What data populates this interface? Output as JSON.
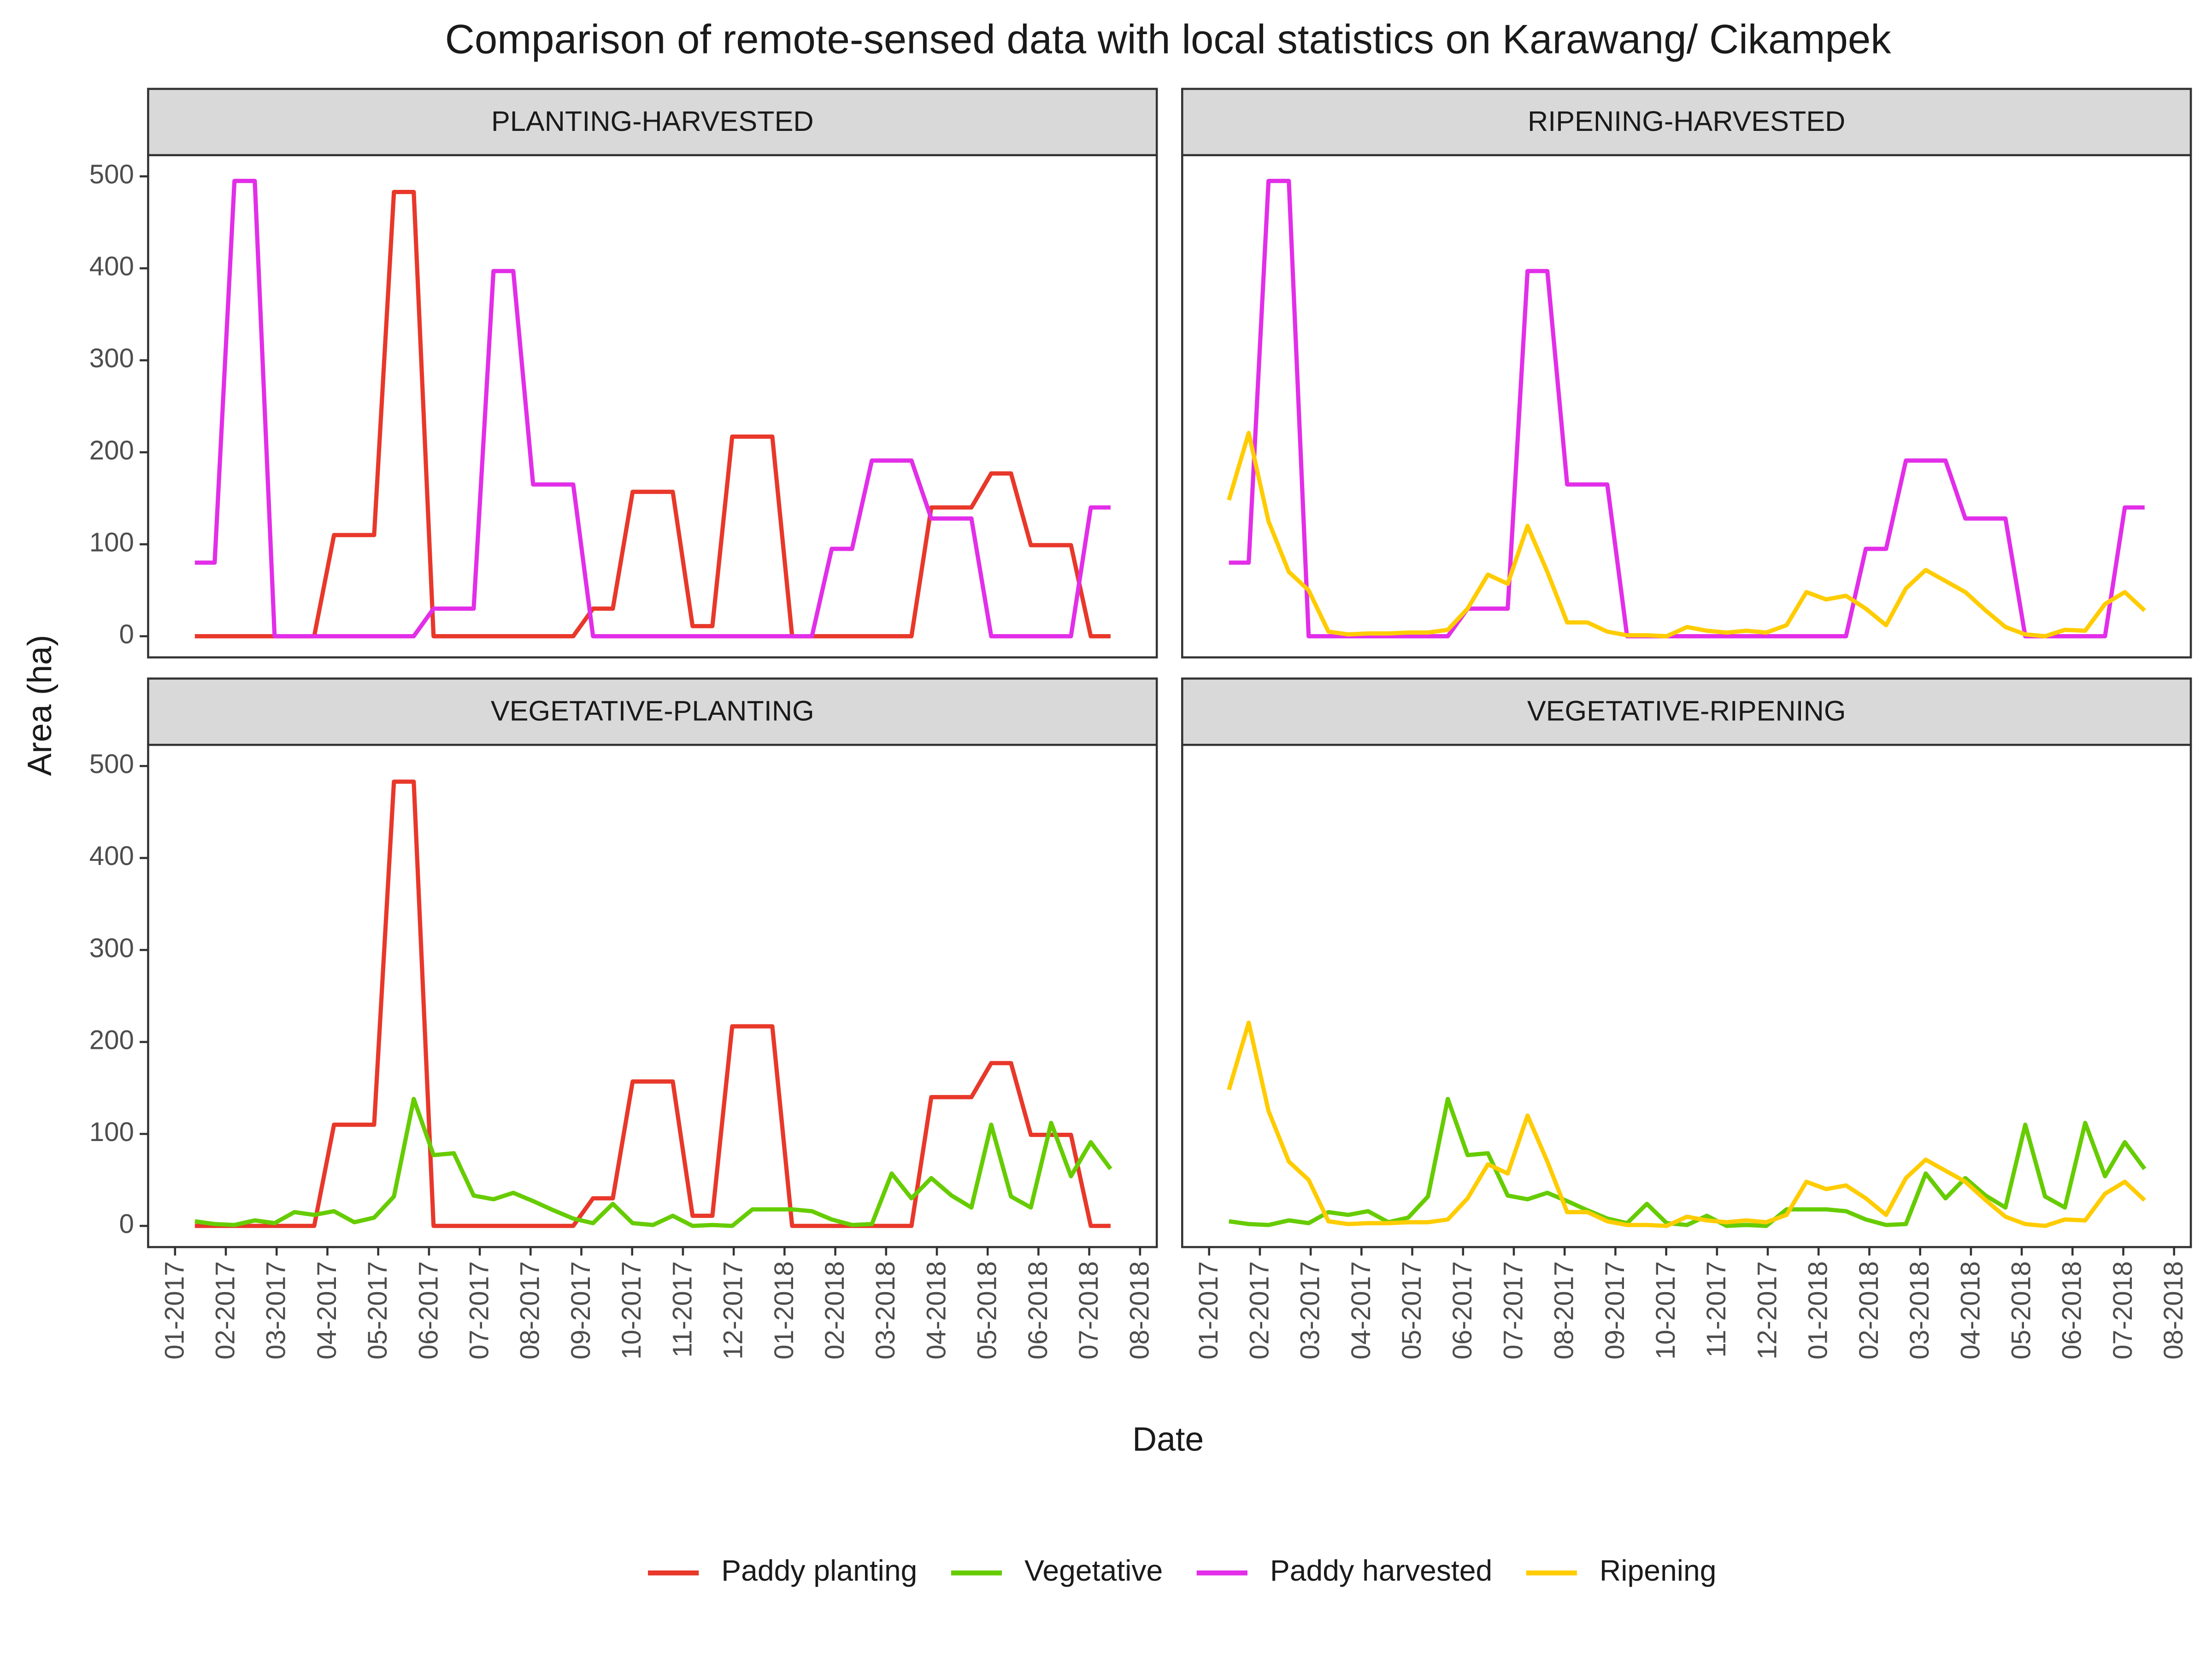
{
  "chart_data": {
    "type": "line",
    "title": "Comparison of remote-sensed data with local statistics on Karawang/ Cikampek",
    "x_label": "Date",
    "y_label": "Area (ha)",
    "legend": "bottom",
    "grid": false,
    "x": [
      0.39,
      0.78,
      1.17,
      1.57,
      1.96,
      2.35,
      2.74,
      3.13,
      3.53,
      3.92,
      4.31,
      4.7,
      5.09,
      5.49,
      5.88,
      6.27,
      6.66,
      7.05,
      7.45,
      7.84,
      8.23,
      8.62,
      9.01,
      9.41,
      9.8,
      10.19,
      10.58,
      10.97,
      11.37,
      11.76,
      12.15,
      12.54,
      12.93,
      13.33,
      13.72,
      14.11,
      14.5,
      14.89,
      15.29,
      15.68,
      16.07,
      16.46,
      16.85,
      17.25,
      17.64,
      18.03,
      18.42
    ],
    "xlim": [
      -0.53,
      19.33
    ],
    "xticks": [
      {
        "value": 0,
        "label": "01-2017"
      },
      {
        "value": 1,
        "label": "02-2017"
      },
      {
        "value": 2,
        "label": "03-2017"
      },
      {
        "value": 3,
        "label": "04-2017"
      },
      {
        "value": 4,
        "label": "05-2017"
      },
      {
        "value": 5,
        "label": "06-2017"
      },
      {
        "value": 6,
        "label": "07-2017"
      },
      {
        "value": 7,
        "label": "08-2017"
      },
      {
        "value": 8,
        "label": "09-2017"
      },
      {
        "value": 9,
        "label": "10-2017"
      },
      {
        "value": 10,
        "label": "11-2017"
      },
      {
        "value": 11,
        "label": "12-2017"
      },
      {
        "value": 12,
        "label": "01-2018"
      },
      {
        "value": 13,
        "label": "02-2018"
      },
      {
        "value": 14,
        "label": "03-2018"
      },
      {
        "value": 15,
        "label": "04-2018"
      },
      {
        "value": 16,
        "label": "05-2018"
      },
      {
        "value": 17,
        "label": "06-2018"
      },
      {
        "value": 18,
        "label": "07-2018"
      },
      {
        "value": 19,
        "label": "08-2018"
      }
    ],
    "ylim": [
      -23,
      523
    ],
    "yticks": [
      0,
      100,
      200,
      300,
      400,
      500
    ],
    "series": [
      {
        "name": "Paddy planting",
        "color": "#e8382a",
        "values": [
          0,
          0,
          0,
          0,
          0,
          0,
          0,
          110,
          110,
          110,
          483,
          483,
          0,
          0,
          0,
          0,
          0,
          0,
          0,
          0,
          30,
          30,
          157,
          157,
          157,
          11,
          11,
          217,
          217,
          217,
          0,
          0,
          0,
          0,
          0,
          0,
          0,
          140,
          140,
          140,
          177,
          177,
          99,
          99,
          99,
          0,
          0
        ]
      },
      {
        "name": "Vegetative",
        "color": "#66cc00",
        "values": [
          5,
          2,
          1,
          6,
          3,
          15,
          12,
          16,
          4,
          9,
          32,
          138,
          77,
          79,
          33,
          29,
          36,
          27,
          17,
          8,
          3,
          24,
          3,
          1,
          11,
          0,
          1,
          0,
          18,
          18,
          18,
          16,
          7,
          1,
          2,
          57,
          30,
          52,
          33,
          20,
          110,
          32,
          20,
          112,
          54,
          91,
          62
        ]
      },
      {
        "name": "Paddy harvested",
        "color": "#e22ee8",
        "values": [
          80,
          80,
          495,
          495,
          0,
          0,
          0,
          0,
          0,
          0,
          0,
          0,
          30,
          30,
          30,
          397,
          397,
          165,
          165,
          165,
          0,
          0,
          0,
          0,
          0,
          0,
          0,
          0,
          0,
          0,
          0,
          0,
          95,
          95,
          191,
          191,
          191,
          128,
          128,
          128,
          0,
          0,
          0,
          0,
          0,
          140,
          140
        ]
      },
      {
        "name": "Ripening",
        "color": "#ffcc00",
        "values": [
          148,
          221,
          125,
          70,
          50,
          5,
          2,
          3,
          3,
          4,
          4,
          7,
          30,
          67,
          57,
          120,
          70,
          15,
          15,
          5,
          1,
          1,
          0,
          10,
          6,
          4,
          6,
          4,
          12,
          48,
          40,
          44,
          30,
          12,
          52,
          72,
          60,
          48,
          28,
          10,
          2,
          0,
          7,
          6,
          35,
          48,
          28
        ]
      }
    ],
    "panels": [
      {
        "title": "PLANTING-HARVESTED",
        "series": [
          "Paddy planting",
          "Paddy harvested"
        ]
      },
      {
        "title": "RIPENING-HARVESTED",
        "series": [
          "Paddy harvested",
          "Ripening"
        ]
      },
      {
        "title": "VEGETATIVE-PLANTING",
        "series": [
          "Paddy planting",
          "Vegetative"
        ]
      },
      {
        "title": "VEGETATIVE-RIPENING",
        "series": [
          "Vegetative",
          "Ripening"
        ]
      }
    ]
  }
}
